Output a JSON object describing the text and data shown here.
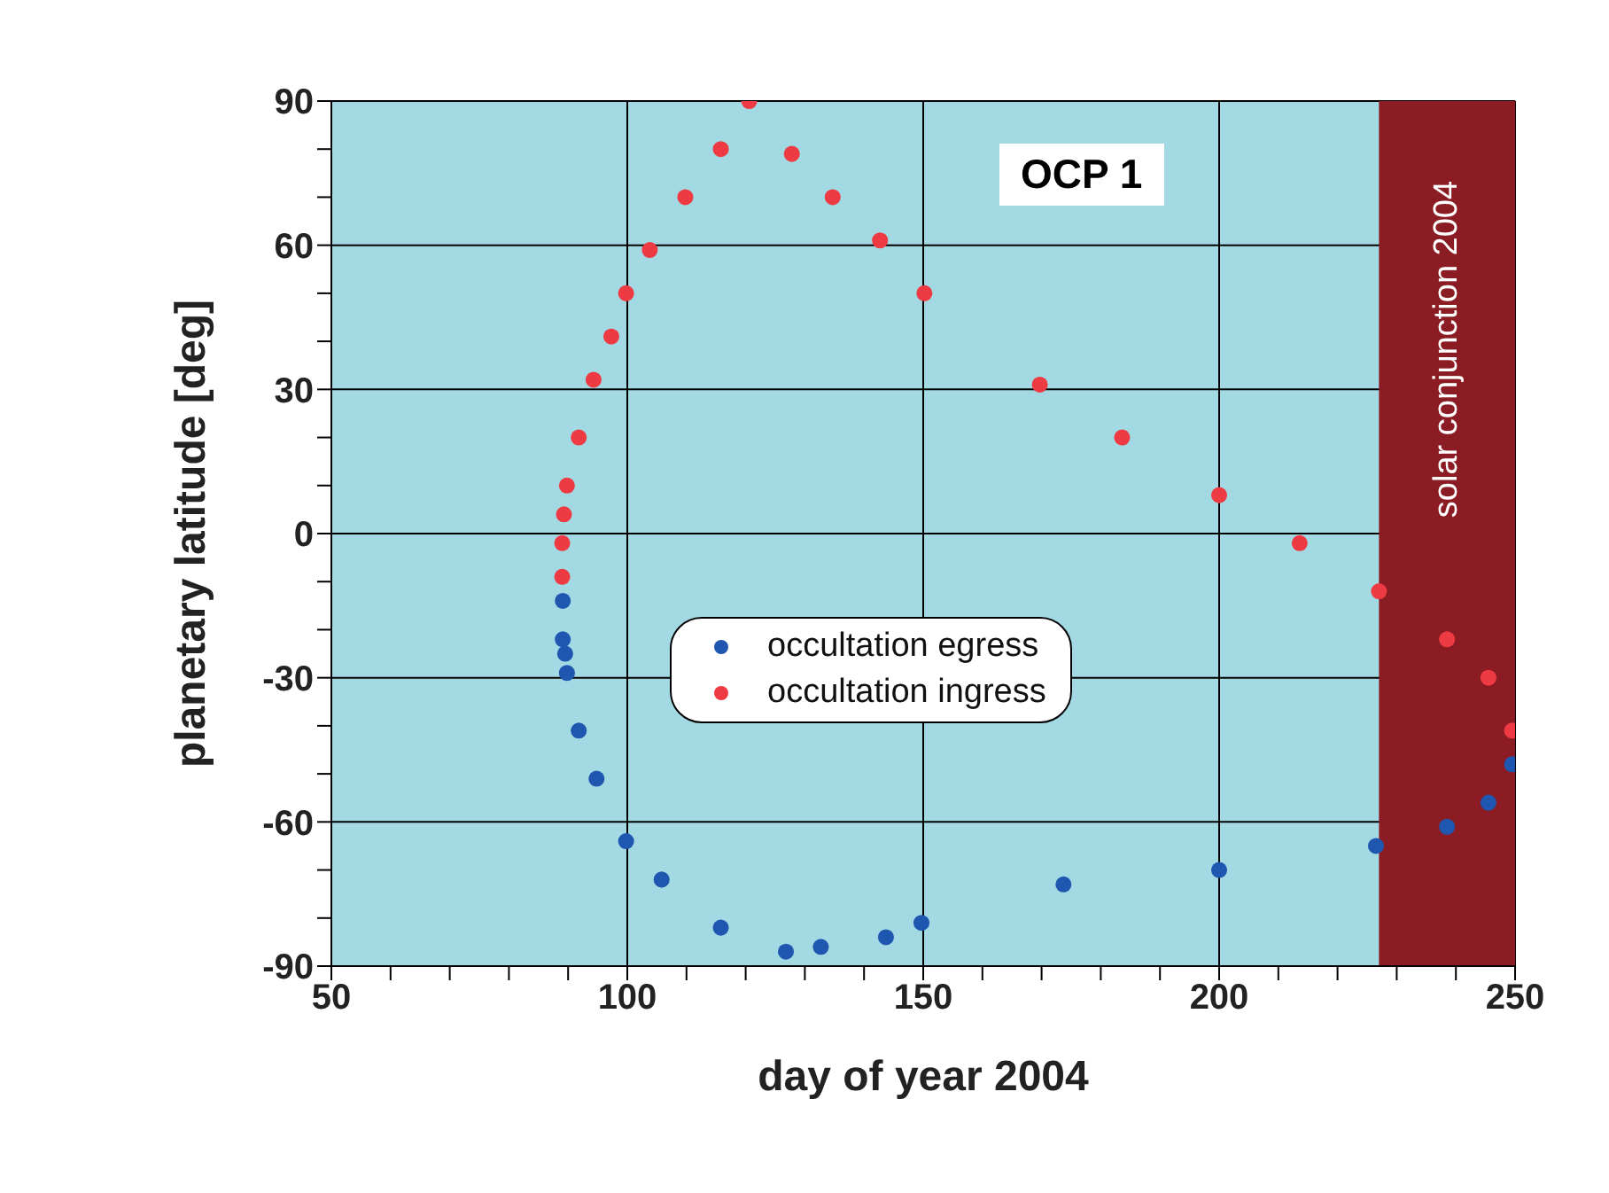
{
  "chart_data": {
    "type": "scatter",
    "xlabel": "day of year 2004",
    "ylabel": "planetary latitude [deg]",
    "annotations": [
      "OCP 1"
    ],
    "xlim": [
      50,
      250
    ],
    "xticks": [
      50,
      {
        "value": 60,
        "label": null
      },
      {
        "value": 70,
        "label": null
      },
      {
        "value": 80,
        "label": null
      },
      {
        "value": 90,
        "label": null
      },
      100,
      {
        "value": 110,
        "label": null
      },
      {
        "value": 120,
        "label": null
      },
      {
        "value": 130,
        "label": null
      },
      {
        "value": 140,
        "label": null
      },
      150,
      {
        "value": 160,
        "label": null
      },
      {
        "value": 170,
        "label": null
      },
      {
        "value": 180,
        "label": null
      },
      {
        "value": 190,
        "label": null
      },
      200,
      {
        "value": 210,
        "label": null
      },
      {
        "value": 220,
        "label": null
      },
      {
        "value": 230,
        "label": null
      },
      {
        "value": 240,
        "label": null
      },
      250
    ],
    "ylim": [
      -90,
      90
    ],
    "yticks": [
      -90,
      {
        "value": -80,
        "label": null
      },
      {
        "value": -70,
        "label": null
      },
      -60,
      {
        "value": -50,
        "label": null
      },
      {
        "value": -40,
        "label": null
      },
      -30,
      {
        "value": -20,
        "label": null
      },
      {
        "value": -10,
        "label": null
      },
      0,
      {
        "value": 10,
        "label": null
      },
      {
        "value": 20,
        "label": null
      },
      30,
      {
        "value": 40,
        "label": null
      },
      {
        "value": 50,
        "label": null
      },
      60,
      {
        "value": 70,
        "label": null
      },
      {
        "value": 80,
        "label": null
      },
      90
    ],
    "grid": true,
    "legend": "left",
    "marker": "circle",
    "bands": [
      {
        "axis": "x",
        "from": 227,
        "to": 250,
        "label": "solar conjunction 2004",
        "color": "#8b1c23"
      }
    ],
    "series": [
      {
        "name": "occultation egress",
        "color": "#1f56b0",
        "x": [
          89.1,
          89.1,
          89.5,
          89.8,
          91.8,
          94.8,
          99.8,
          105.8,
          115.8,
          126.8,
          132.7,
          143.7,
          149.7,
          173.7,
          200,
          226.5,
          238.5,
          245.5,
          249.5
        ],
        "values": [
          -14,
          -22,
          -25,
          -29,
          -41,
          -51,
          -64,
          -72,
          -82,
          -87,
          -86,
          -84,
          -81,
          -73,
          -70,
          -65,
          -61,
          -56,
          -48
        ]
      },
      {
        "name": "occultation ingress",
        "color": "#ee3a43",
        "x": [
          89,
          89,
          89.3,
          89.8,
          91.8,
          94.3,
          97.3,
          99.8,
          103.8,
          109.8,
          115.8,
          120.6,
          127.8,
          134.7,
          142.7,
          150.2,
          169.7,
          183.6,
          200,
          213.6,
          227,
          238.5,
          245.5,
          249.5
        ],
        "values": [
          -9,
          -2,
          4,
          10,
          20,
          32,
          41,
          50,
          59,
          70,
          80,
          90,
          79,
          70,
          61,
          50,
          31,
          20,
          8,
          -2,
          -12,
          -22,
          -30,
          -41
        ]
      }
    ]
  }
}
